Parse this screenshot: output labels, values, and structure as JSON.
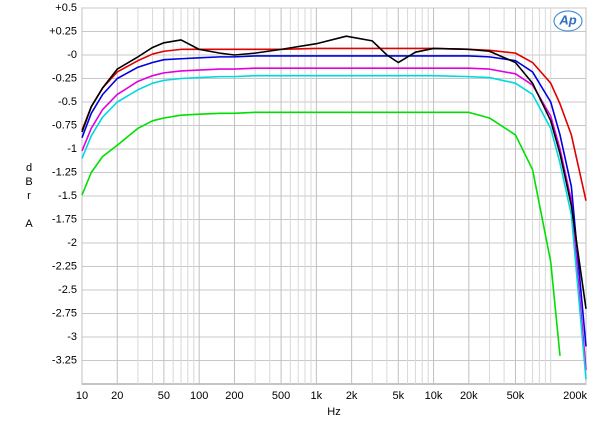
{
  "chart_data": {
    "type": "line",
    "xlabel": "Hz",
    "ylabel": "dBr A",
    "logo": "Ap",
    "x": [
      10,
      12,
      15,
      20,
      30,
      40,
      50,
      70,
      100,
      150,
      200,
      300,
      500,
      1000,
      1800,
      3000,
      4000,
      5000,
      7000,
      10000,
      20000,
      30000,
      50000,
      70000,
      100000,
      120000,
      150000,
      200000
    ],
    "series": [
      {
        "color": "#e00000",
        "values": [
          -0.8,
          -0.55,
          -0.35,
          -0.18,
          -0.06,
          0.01,
          0.04,
          0.06,
          0.06,
          0.06,
          0.06,
          0.06,
          0.06,
          0.07,
          0.07,
          0.07,
          0.07,
          0.07,
          0.07,
          0.07,
          0.06,
          0.05,
          0.02,
          -0.08,
          -0.3,
          -0.52,
          -0.85,
          -1.55
        ]
      },
      {
        "color": "#0000e0",
        "values": [
          -0.88,
          -0.62,
          -0.42,
          -0.25,
          -0.13,
          -0.08,
          -0.05,
          -0.04,
          -0.03,
          -0.02,
          -0.02,
          -0.01,
          -0.01,
          -0.01,
          -0.01,
          -0.01,
          -0.01,
          -0.01,
          -0.01,
          -0.01,
          -0.01,
          -0.02,
          -0.06,
          -0.18,
          -0.5,
          -0.85,
          -1.4,
          -3.1
        ]
      },
      {
        "color": "#e000e0",
        "values": [
          -1.02,
          -0.78,
          -0.58,
          -0.42,
          -0.28,
          -0.22,
          -0.19,
          -0.17,
          -0.16,
          -0.15,
          -0.15,
          -0.14,
          -0.14,
          -0.14,
          -0.14,
          -0.14,
          -0.14,
          -0.14,
          -0.14,
          -0.14,
          -0.14,
          -0.15,
          -0.2,
          -0.32,
          -0.65,
          -1.0,
          -1.55,
          -3.35
        ]
      },
      {
        "color": "#00d8e0",
        "values": [
          -1.1,
          -0.86,
          -0.66,
          -0.5,
          -0.37,
          -0.3,
          -0.27,
          -0.25,
          -0.24,
          -0.23,
          -0.23,
          -0.22,
          -0.22,
          -0.22,
          -0.22,
          -0.22,
          -0.22,
          -0.22,
          -0.22,
          -0.22,
          -0.23,
          -0.24,
          -0.3,
          -0.42,
          -0.78,
          -1.15,
          -1.7,
          -3.45
        ]
      },
      {
        "color": "#00e000",
        "values": [
          -1.49,
          -1.25,
          -1.08,
          -0.96,
          -0.78,
          -0.7,
          -0.67,
          -0.64,
          -0.63,
          -0.62,
          -0.62,
          -0.61,
          -0.61,
          -0.61,
          -0.61,
          -0.61,
          -0.61,
          -0.61,
          -0.61,
          -0.61,
          -0.61,
          -0.67,
          -0.85,
          -1.22,
          -2.2,
          -3.2,
          null,
          null
        ]
      },
      {
        "color": "#000000",
        "values": [
          -0.82,
          -0.55,
          -0.35,
          -0.15,
          -0.02,
          0.08,
          0.13,
          0.16,
          0.06,
          0.02,
          0.0,
          0.02,
          0.06,
          0.12,
          0.2,
          0.15,
          0.0,
          -0.08,
          0.03,
          0.07,
          0.06,
          0.04,
          -0.08,
          -0.3,
          -0.7,
          -1.05,
          -1.6,
          -2.7
        ]
      }
    ],
    "log_x": true,
    "xlim": [
      10,
      200000
    ],
    "xticks": [
      10,
      20,
      50,
      100,
      200,
      500,
      {
        "value": 1000,
        "label": "1k"
      },
      {
        "value": 2000,
        "label": "2k"
      },
      {
        "value": 5000,
        "label": "5k"
      },
      {
        "value": 10000,
        "label": "10k"
      },
      {
        "value": 20000,
        "label": "20k"
      },
      {
        "value": 50000,
        "label": "50k"
      },
      {
        "value": 200000,
        "label": "200k"
      }
    ],
    "xminor_ticks": [
      30,
      40,
      60,
      70,
      80,
      90,
      300,
      400,
      600,
      700,
      800,
      900,
      3000,
      4000,
      6000,
      7000,
      8000,
      9000,
      30000,
      40000,
      60000,
      70000,
      80000,
      90000,
      100000,
      300000
    ],
    "ylim": [
      -3.5,
      0.5
    ],
    "yticks": [
      {
        "value": 0.5,
        "label": "+0.5"
      },
      {
        "value": 0.25,
        "label": "+0.25"
      },
      {
        "value": 0,
        "label": "-0"
      },
      -0.25,
      -0.5,
      -0.75,
      -1,
      -1.25,
      -1.5,
      -1.75,
      -2,
      -2.25,
      -2.5,
      -2.75,
      -3,
      -3.25
    ],
    "grid": true
  }
}
